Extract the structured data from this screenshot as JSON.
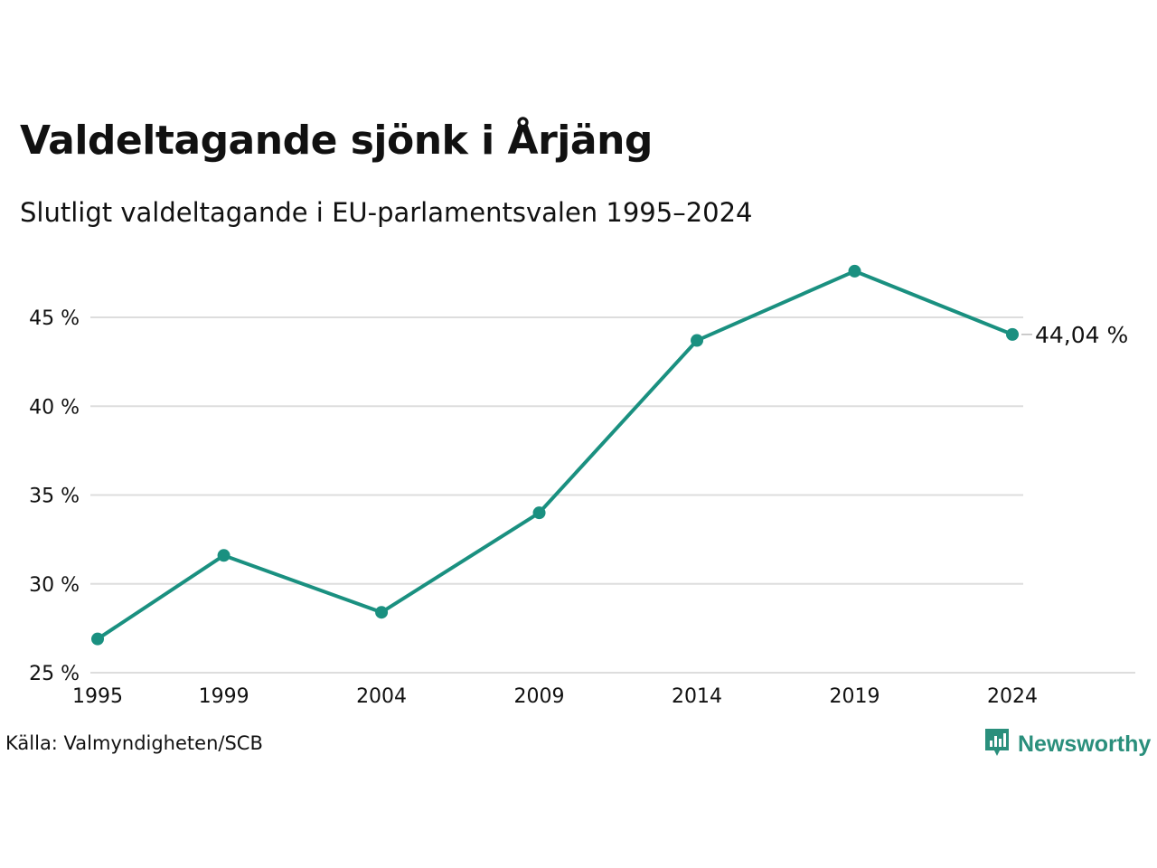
{
  "header": {
    "title": "Valdeltagande sjönk i Årjäng",
    "subtitle": "Slutligt valdeltagande i EU-parlamentsvalen 1995–2024"
  },
  "footer": {
    "source": "Källa: Valmyndigheten/SCB",
    "brand": "Newsworthy",
    "brand_icon": "bar-chart-badge-icon"
  },
  "colors": {
    "line": "#1a9080",
    "grid": "#dddddd",
    "text": "#111111",
    "brand": "#2a8f7c"
  },
  "chart_data": {
    "type": "line",
    "title": "Valdeltagande sjönk i Årjäng",
    "subtitle": "Slutligt valdeltagande i EU-parlamentsvalen 1995–2024",
    "x": [
      1995,
      1999,
      2004,
      2009,
      2014,
      2019,
      2024
    ],
    "x_tick_labels": [
      "1995",
      "1999",
      "2004",
      "2009",
      "2014",
      "2019",
      "2024"
    ],
    "series": [
      {
        "values": [
          26.9,
          31.6,
          28.4,
          34.0,
          43.7,
          47.6,
          44.04
        ]
      }
    ],
    "y_ticks": [
      25,
      30,
      35,
      40,
      45
    ],
    "y_tick_labels": [
      "25 %",
      "30 %",
      "35 %",
      "40 %",
      "45 %"
    ],
    "ylim": [
      25,
      48
    ],
    "end_label": "44,04 %",
    "xlabel": "",
    "ylabel": "",
    "grid": true
  }
}
